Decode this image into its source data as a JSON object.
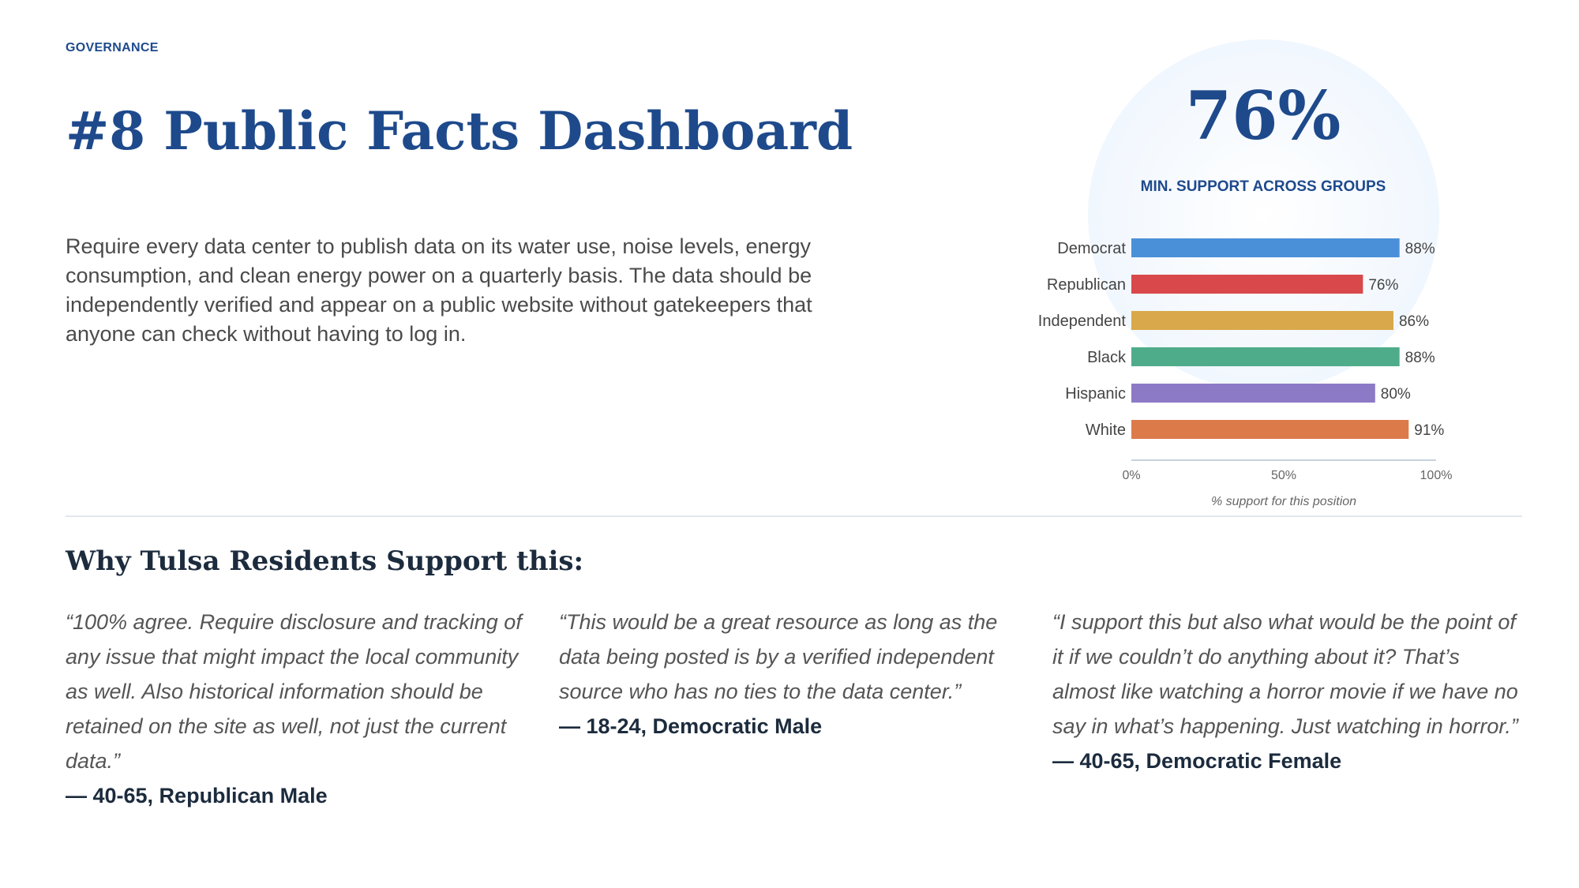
{
  "header": {
    "eyebrow": "GOVERNANCE",
    "title": "#8 Public Facts Dashboard"
  },
  "description": "Require every data center to publish data on its water use, noise levels, energy consumption, and clean energy power on a quarterly basis. The data should be independently verified and appear on a public website without gatekeepers that anyone can check without having to log in.",
  "hero": {
    "value": "76%",
    "label": "MIN. SUPPORT ACROSS GROUPS"
  },
  "chart_data": {
    "type": "bar",
    "orientation": "horizontal",
    "categories": [
      "Democrat",
      "Republican",
      "Independent",
      "Black",
      "Hispanic",
      "White"
    ],
    "values": [
      88,
      76,
      86,
      88,
      80,
      91
    ],
    "value_labels": [
      "88%",
      "76%",
      "86%",
      "88%",
      "80%",
      "91%"
    ],
    "colors": [
      "#4a90d9",
      "#d9484b",
      "#d9a84a",
      "#4fac8a",
      "#8c7ac6",
      "#dd7a4a"
    ],
    "xlim": [
      0,
      100
    ],
    "xticks": [
      0,
      50,
      100
    ],
    "xtick_labels": [
      "0%",
      "50%",
      "100%"
    ],
    "xlabel": "% support for this position",
    "grid": false
  },
  "section": {
    "title": "Why Tulsa Residents Support this:"
  },
  "quotes": [
    {
      "text": "“100% agree. Require disclosure and tracking of any issue that might impact the local community as well. Also historical information should be retained on the site as well, not just the current data.”",
      "attribution": "— 40-65, Republican Male"
    },
    {
      "text": "“This would be a great resource as long as the data being posted is by a verified independent source who has no ties to the data center.”",
      "attribution": "— 18-24, Democratic Male"
    },
    {
      "text": "“I support this but also what would be the point of it if we couldn’t do anything about it? That’s almost like watching a horror movie if we have no say in what’s happening. Just watching in horror.”",
      "attribution": "— 40-65, Democratic Female"
    }
  ]
}
